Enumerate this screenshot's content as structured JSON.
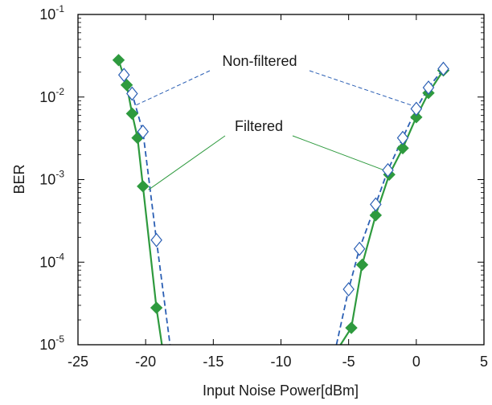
{
  "chart_data": {
    "type": "line",
    "xlabel": "Input Noise Power[dBm]",
    "ylabel": "BER",
    "xlim": [
      -25,
      5
    ],
    "ylim_log10": [
      -5,
      -1
    ],
    "y_scale": "log",
    "x_ticks": [
      "-25",
      "-20",
      "-15",
      "-10",
      "-5",
      "0",
      "5"
    ],
    "x_tick_values": [
      -25,
      -20,
      -15,
      -10,
      -5,
      0,
      5
    ],
    "y_ticks": [
      {
        "base": "10",
        "exp": "-5"
      },
      {
        "base": "10",
        "exp": "-4"
      },
      {
        "base": "10",
        "exp": "-3"
      },
      {
        "base": "10",
        "exp": "-2"
      },
      {
        "base": "10",
        "exp": "-1"
      }
    ],
    "y_tick_log_values": [
      -5,
      -4,
      -3,
      -2,
      -1
    ],
    "grid": false,
    "series": [
      {
        "name": "Filtered",
        "color": "#2e9a3e",
        "marker": "filled-diamond",
        "line": "solid",
        "branches": [
          {
            "points": [
              [
                -22.0,
                0.028
              ],
              [
                -21.4,
                0.014
              ],
              [
                -21.0,
                0.0063
              ],
              [
                -20.6,
                0.0032
              ],
              [
                -20.2,
                0.00083
              ],
              [
                -19.2,
                2.8e-05
              ]
            ],
            "extend_to": [
              -18.8,
              1e-05
            ]
          },
          {
            "points": [
              [
                -4.8,
                1.6e-05
              ],
              [
                -4.0,
                9.3e-05
              ],
              [
                -3.0,
                0.00037
              ],
              [
                -2.0,
                0.00115
              ],
              [
                -1.0,
                0.0024
              ],
              [
                0.0,
                0.0057
              ],
              [
                0.9,
                0.0112
              ],
              [
                2.0,
                0.021
              ]
            ],
            "extend_to": [
              -5.6,
              1e-05
            ]
          }
        ]
      },
      {
        "name": "Non-filtered",
        "color": "#2b5fb4",
        "marker": "open-diamond",
        "line": "dashed",
        "branches": [
          {
            "points": [
              [
                -21.6,
                0.0185
              ],
              [
                -21.0,
                0.011
              ],
              [
                -20.2,
                0.0038
              ],
              [
                -19.2,
                0.000185
              ]
            ],
            "extend_to": [
              -18.2,
              1e-05
            ]
          },
          {
            "points": [
              [
                -5.0,
                4.7e-05
              ],
              [
                -4.2,
                0.000145
              ],
              [
                -3.0,
                0.0005
              ],
              [
                -2.1,
                0.0013
              ],
              [
                -1.0,
                0.0032
              ],
              [
                0.0,
                0.0072
              ],
              [
                0.9,
                0.013
              ],
              [
                2.0,
                0.022
              ]
            ],
            "extend_to": [
              -5.9,
              1e-05
            ]
          }
        ]
      }
    ],
    "annotations": [
      {
        "text": "Non-filtered",
        "series": "Non-filtered",
        "pointer_ends": [
          [
            -20.7,
            0.008
          ],
          [
            -0.4,
            0.008
          ]
        ]
      },
      {
        "text": "Filtered",
        "series": "Filtered",
        "pointer_ends": [
          [
            -19.8,
            0.00075
          ],
          [
            -2.1,
            0.00125
          ]
        ]
      }
    ]
  }
}
